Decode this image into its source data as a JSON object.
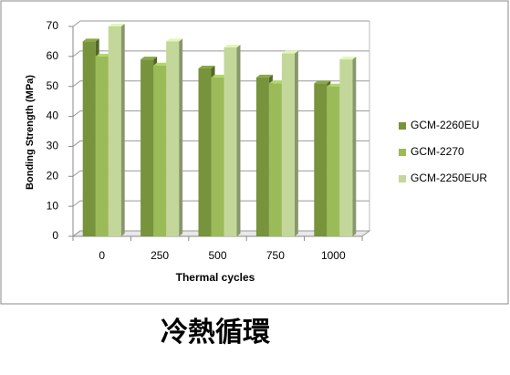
{
  "chart_data": {
    "type": "bar",
    "categories": [
      "0",
      "250",
      "500",
      "750",
      "1000"
    ],
    "series": [
      {
        "name": "GCM-2260EU",
        "color": "#77933c",
        "values": [
          65,
          59,
          56,
          53,
          51
        ]
      },
      {
        "name": "GCM-2270",
        "color": "#9bbb59",
        "values": [
          60,
          57,
          53,
          51,
          50
        ]
      },
      {
        "name": "GCM-2250EUR",
        "color": "#c4d79b",
        "values": [
          70,
          65,
          63,
          61,
          59
        ]
      }
    ],
    "ylim": [
      0,
      70
    ],
    "yticks": [
      0,
      10,
      20,
      30,
      40,
      50,
      60,
      70
    ],
    "xlabel": "Thermal cycles",
    "ylabel": "Bonding Strength (MPa)",
    "grid": true,
    "legend": "right"
  },
  "caption": "冷熱循環"
}
